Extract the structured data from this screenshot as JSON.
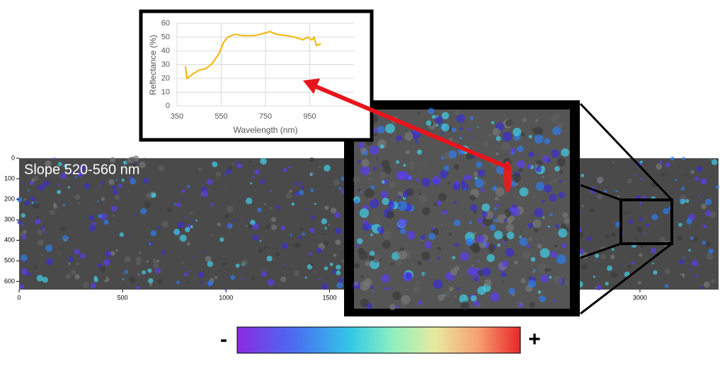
{
  "chart_data": [
    {
      "type": "line",
      "xlabel": "Wavelength (nm)",
      "ylabel": "Reflectance (%)",
      "x": [
        388,
        395,
        420,
        450,
        480,
        510,
        540,
        560,
        580,
        610,
        650,
        700,
        750,
        770,
        800,
        850,
        880,
        900,
        920,
        940,
        960,
        970,
        980,
        1000
      ],
      "values": [
        29,
        20,
        23,
        26,
        27,
        31,
        38,
        46,
        50,
        52,
        51,
        51,
        53,
        54,
        52,
        51,
        50,
        49,
        48,
        50,
        48,
        50,
        44,
        45
      ],
      "color": "#f5b400",
      "xlim": [
        350,
        1150
      ],
      "xticks": [
        350,
        550,
        750,
        950
      ],
      "ylim": [
        0,
        60
      ],
      "yticks": [
        0,
        10,
        20,
        30,
        40,
        50,
        60
      ],
      "grid": true
    },
    {
      "type": "image",
      "title": "Slope 520-560 nm",
      "xlim": [
        0,
        3380
      ],
      "xticks": [
        0,
        500,
        1000,
        1500,
        3000
      ],
      "ylim": [
        0,
        640
      ],
      "yticks": [
        0,
        100,
        200,
        300,
        400,
        500,
        600
      ],
      "colorbar_labels": [
        "-",
        "+"
      ]
    }
  ]
}
